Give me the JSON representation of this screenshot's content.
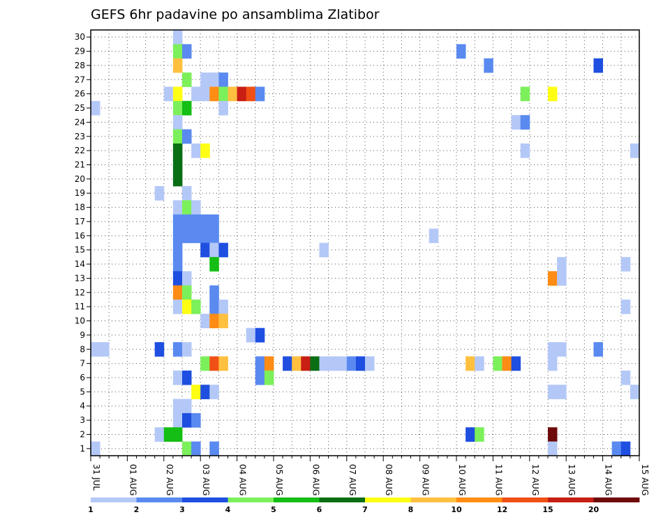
{
  "chart_data": {
    "type": "heatmap",
    "title": "GEFS 6hr padavine po ansamblima Zlatibor",
    "x_start": "2019-07-31 00:00",
    "x_tick_labels": [
      "31 JUL",
      "01 AUG",
      "02 AUG",
      "03 AUG",
      "04 AUG",
      "05 AUG",
      "06 AUG",
      "07 AUG",
      "08 AUG",
      "09 AUG",
      "10 AUG",
      "11 AUG",
      "12 AUG",
      "13 AUG",
      "14 AUG",
      "15 AUG"
    ],
    "y_tick_labels": [
      "1",
      "2",
      "3",
      "4",
      "5",
      "6",
      "7",
      "8",
      "9",
      "10",
      "11",
      "12",
      "13",
      "14",
      "15",
      "16",
      "17",
      "18",
      "19",
      "20",
      "21",
      "22",
      "23",
      "24",
      "25",
      "26",
      "27",
      "28",
      "29",
      "30"
    ],
    "ylim": [
      0.5,
      30.5
    ],
    "grid": true,
    "colorbar": {
      "levels": [
        "1",
        "2",
        "3",
        "4",
        "5",
        "6",
        "7",
        "8",
        "10",
        "12",
        "15",
        "20"
      ],
      "colors": [
        "#b4c8f8",
        "#5a8af0",
        "#1e4fe0",
        "#7cf05a",
        "#14be14",
        "#0a6e14",
        "#ffff14",
        "#ffc040",
        "#ff8c14",
        "#f05014",
        "#c81e14",
        "#6e0a0a"
      ]
    },
    "cells": [
      {
        "member": 30,
        "step": 10,
        "level": 1
      },
      {
        "member": 29,
        "step": 10,
        "level": 4
      },
      {
        "member": 29,
        "step": 11,
        "level": 2
      },
      {
        "member": 29,
        "step": 41,
        "level": 2
      },
      {
        "member": 28,
        "step": 10,
        "level": 8
      },
      {
        "member": 28,
        "step": 44,
        "level": 2
      },
      {
        "member": 28,
        "step": 56,
        "level": 3
      },
      {
        "member": 27,
        "step": 11,
        "level": 4
      },
      {
        "member": 27,
        "step": 13,
        "level": 1
      },
      {
        "member": 27,
        "step": 14,
        "level": 1
      },
      {
        "member": 27,
        "step": 15,
        "level": 2
      },
      {
        "member": 26,
        "step": 9,
        "level": 1
      },
      {
        "member": 26,
        "step": 10,
        "level": 7
      },
      {
        "member": 26,
        "step": 12,
        "level": 1
      },
      {
        "member": 26,
        "step": 13,
        "level": 1
      },
      {
        "member": 26,
        "step": 14,
        "level": 9
      },
      {
        "member": 26,
        "step": 15,
        "level": 4
      },
      {
        "member": 26,
        "step": 16,
        "level": 8
      },
      {
        "member": 26,
        "step": 17,
        "level": 11
      },
      {
        "member": 26,
        "step": 18,
        "level": 10
      },
      {
        "member": 26,
        "step": 19,
        "level": 2
      },
      {
        "member": 26,
        "step": 48,
        "level": 4
      },
      {
        "member": 26,
        "step": 51,
        "level": 7
      },
      {
        "member": 25,
        "step": 1,
        "level": 1
      },
      {
        "member": 25,
        "step": 10,
        "level": 4
      },
      {
        "member": 25,
        "step": 11,
        "level": 5
      },
      {
        "member": 25,
        "step": 15,
        "level": 1
      },
      {
        "member": 24,
        "step": 10,
        "level": 1
      },
      {
        "member": 24,
        "step": 47,
        "level": 1
      },
      {
        "member": 24,
        "step": 48,
        "level": 2
      },
      {
        "member": 23,
        "step": 10,
        "level": 4
      },
      {
        "member": 23,
        "step": 11,
        "level": 2
      },
      {
        "member": 22,
        "step": 10,
        "level": 6
      },
      {
        "member": 22,
        "step": 12,
        "level": 1
      },
      {
        "member": 22,
        "step": 13,
        "level": 7
      },
      {
        "member": 22,
        "step": 48,
        "level": 1
      },
      {
        "member": 22,
        "step": 60,
        "level": 1
      },
      {
        "member": 21,
        "step": 10,
        "level": 6
      },
      {
        "member": 20,
        "step": 10,
        "level": 6
      },
      {
        "member": 19,
        "step": 8,
        "level": 1
      },
      {
        "member": 19,
        "step": 11,
        "level": 1
      },
      {
        "member": 18,
        "step": 10,
        "level": 1
      },
      {
        "member": 18,
        "step": 11,
        "level": 4
      },
      {
        "member": 18,
        "step": 12,
        "level": 1
      },
      {
        "member": 17,
        "step": 10,
        "level": 2
      },
      {
        "member": 17,
        "step": 11,
        "level": 2
      },
      {
        "member": 17,
        "step": 12,
        "level": 2
      },
      {
        "member": 17,
        "step": 13,
        "level": 2
      },
      {
        "member": 17,
        "step": 14,
        "level": 2
      },
      {
        "member": 16,
        "step": 10,
        "level": 2
      },
      {
        "member": 16,
        "step": 11,
        "level": 2
      },
      {
        "member": 16,
        "step": 12,
        "level": 2
      },
      {
        "member": 16,
        "step": 13,
        "level": 2
      },
      {
        "member": 16,
        "step": 14,
        "level": 2
      },
      {
        "member": 16,
        "step": 38,
        "level": 1
      },
      {
        "member": 15,
        "step": 10,
        "level": 2
      },
      {
        "member": 15,
        "step": 13,
        "level": 3
      },
      {
        "member": 15,
        "step": 14,
        "level": 1
      },
      {
        "member": 15,
        "step": 15,
        "level": 3
      },
      {
        "member": 15,
        "step": 26,
        "level": 1
      },
      {
        "member": 14,
        "step": 10,
        "level": 2
      },
      {
        "member": 14,
        "step": 14,
        "level": 5
      },
      {
        "member": 14,
        "step": 52,
        "level": 1
      },
      {
        "member": 14,
        "step": 59,
        "level": 1
      },
      {
        "member": 13,
        "step": 10,
        "level": 3
      },
      {
        "member": 13,
        "step": 11,
        "level": 1
      },
      {
        "member": 13,
        "step": 51,
        "level": 9
      },
      {
        "member": 13,
        "step": 52,
        "level": 1
      },
      {
        "member": 12,
        "step": 10,
        "level": 9
      },
      {
        "member": 12,
        "step": 11,
        "level": 4
      },
      {
        "member": 12,
        "step": 14,
        "level": 2
      },
      {
        "member": 11,
        "step": 10,
        "level": 1
      },
      {
        "member": 11,
        "step": 11,
        "level": 7
      },
      {
        "member": 11,
        "step": 12,
        "level": 4
      },
      {
        "member": 11,
        "step": 14,
        "level": 2
      },
      {
        "member": 11,
        "step": 15,
        "level": 1
      },
      {
        "member": 11,
        "step": 59,
        "level": 1
      },
      {
        "member": 10,
        "step": 13,
        "level": 1
      },
      {
        "member": 10,
        "step": 14,
        "level": 9
      },
      {
        "member": 10,
        "step": 15,
        "level": 8
      },
      {
        "member": 9,
        "step": 18,
        "level": 1
      },
      {
        "member": 9,
        "step": 19,
        "level": 3
      },
      {
        "member": 8,
        "step": 1,
        "level": 1
      },
      {
        "member": 8,
        "step": 2,
        "level": 1
      },
      {
        "member": 8,
        "step": 8,
        "level": 3
      },
      {
        "member": 8,
        "step": 10,
        "level": 2
      },
      {
        "member": 8,
        "step": 11,
        "level": 1
      },
      {
        "member": 8,
        "step": 51,
        "level": 1
      },
      {
        "member": 8,
        "step": 52,
        "level": 1
      },
      {
        "member": 8,
        "step": 56,
        "level": 2
      },
      {
        "member": 7,
        "step": 13,
        "level": 4
      },
      {
        "member": 7,
        "step": 14,
        "level": 10
      },
      {
        "member": 7,
        "step": 15,
        "level": 8
      },
      {
        "member": 7,
        "step": 19,
        "level": 2
      },
      {
        "member": 7,
        "step": 20,
        "level": 9
      },
      {
        "member": 7,
        "step": 22,
        "level": 3
      },
      {
        "member": 7,
        "step": 23,
        "level": 8
      },
      {
        "member": 7,
        "step": 24,
        "level": 11
      },
      {
        "member": 7,
        "step": 25,
        "level": 6
      },
      {
        "member": 7,
        "step": 26,
        "level": 1
      },
      {
        "member": 7,
        "step": 27,
        "level": 1
      },
      {
        "member": 7,
        "step": 28,
        "level": 1
      },
      {
        "member": 7,
        "step": 29,
        "level": 2
      },
      {
        "member": 7,
        "step": 30,
        "level": 3
      },
      {
        "member": 7,
        "step": 31,
        "level": 1
      },
      {
        "member": 7,
        "step": 42,
        "level": 8
      },
      {
        "member": 7,
        "step": 43,
        "level": 1
      },
      {
        "member": 7,
        "step": 45,
        "level": 4
      },
      {
        "member": 7,
        "step": 46,
        "level": 9
      },
      {
        "member": 7,
        "step": 47,
        "level": 3
      },
      {
        "member": 7,
        "step": 51,
        "level": 1
      },
      {
        "member": 6,
        "step": 10,
        "level": 1
      },
      {
        "member": 6,
        "step": 11,
        "level": 3
      },
      {
        "member": 6,
        "step": 19,
        "level": 2
      },
      {
        "member": 6,
        "step": 20,
        "level": 4
      },
      {
        "member": 6,
        "step": 59,
        "level": 1
      },
      {
        "member": 5,
        "step": 12,
        "level": 7
      },
      {
        "member": 5,
        "step": 13,
        "level": 3
      },
      {
        "member": 5,
        "step": 14,
        "level": 1
      },
      {
        "member": 5,
        "step": 51,
        "level": 1
      },
      {
        "member": 5,
        "step": 52,
        "level": 1
      },
      {
        "member": 5,
        "step": 60,
        "level": 1
      },
      {
        "member": 4,
        "step": 10,
        "level": 1
      },
      {
        "member": 4,
        "step": 11,
        "level": 1
      },
      {
        "member": 3,
        "step": 10,
        "level": 1
      },
      {
        "member": 3,
        "step": 11,
        "level": 3
      },
      {
        "member": 3,
        "step": 12,
        "level": 2
      },
      {
        "member": 2,
        "step": 8,
        "level": 1
      },
      {
        "member": 2,
        "step": 9,
        "level": 5
      },
      {
        "member": 2,
        "step": 10,
        "level": 5
      },
      {
        "member": 2,
        "step": 42,
        "level": 3
      },
      {
        "member": 2,
        "step": 43,
        "level": 4
      },
      {
        "member": 2,
        "step": 51,
        "level": 12
      },
      {
        "member": 1,
        "step": 1,
        "level": 1
      },
      {
        "member": 1,
        "step": 11,
        "level": 4
      },
      {
        "member": 1,
        "step": 12,
        "level": 2
      },
      {
        "member": 1,
        "step": 14,
        "level": 2
      },
      {
        "member": 1,
        "step": 51,
        "level": 1
      },
      {
        "member": 1,
        "step": 58,
        "level": 2
      },
      {
        "member": 1,
        "step": 59,
        "level": 3
      }
    ]
  }
}
